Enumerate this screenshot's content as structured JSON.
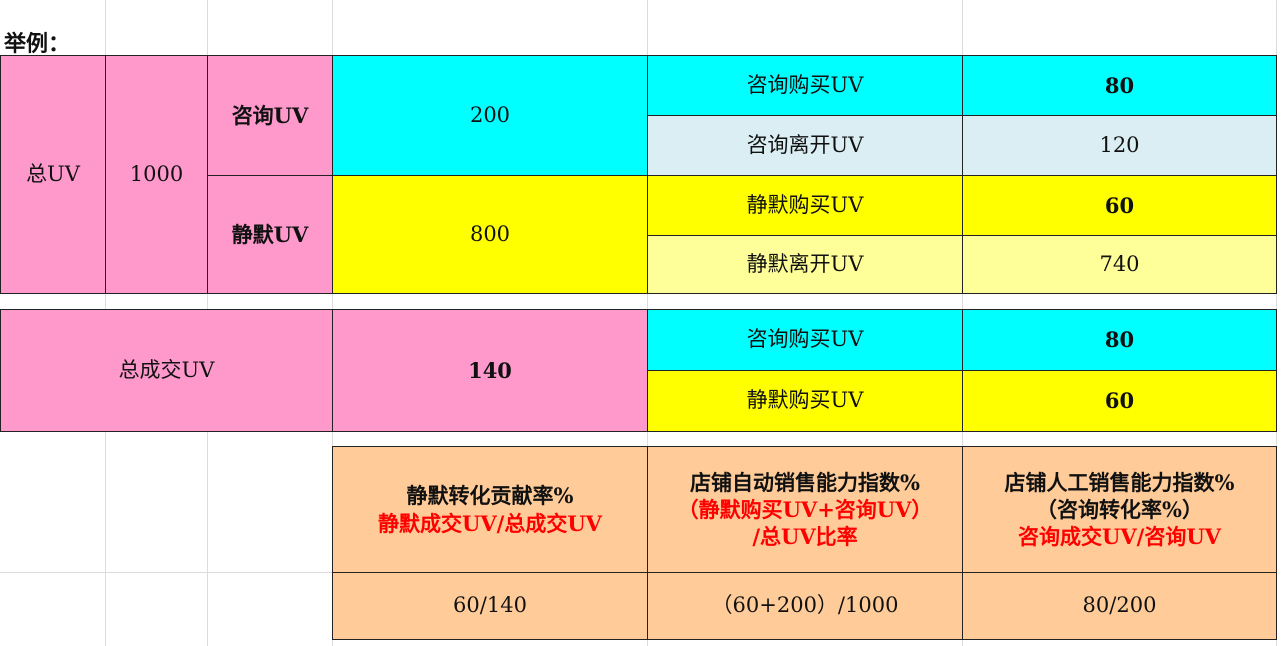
{
  "title": "举例：",
  "colors": {
    "pink": "#ff99cc",
    "cyan": "#00ffff",
    "light_blue": "#daeef3",
    "yellow": "#ffff00",
    "light_yellow": "#ffff99",
    "peach": "#ffcc99",
    "red": "#ff0000"
  },
  "uv_table": {
    "total_label": "总UV",
    "total_value": "1000",
    "consult_label": "咨询UV",
    "consult_value": "200",
    "silent_label": "静默UV",
    "silent_value": "800",
    "consult_buy_label": "咨询购买UV",
    "consult_buy_value": "80",
    "consult_leave_label": "咨询离开UV",
    "consult_leave_value": "120",
    "silent_buy_label": "静默购买UV",
    "silent_buy_value": "60",
    "silent_leave_label": "静默离开UV",
    "silent_leave_value": "740"
  },
  "deal_table": {
    "label": "总成交UV",
    "value": "140",
    "consult_buy_label": "咨询购买UV",
    "consult_buy_value": "80",
    "silent_buy_label": "静默购买UV",
    "silent_buy_value": "60"
  },
  "metrics": [
    {
      "title": "静默转化贡献率%",
      "formula_lines": [
        "静默成交UV/总成交UV"
      ],
      "example": "60/140"
    },
    {
      "title": "店铺自动销售能力指数%",
      "formula_lines": [
        "（静默购买UV+咨询UV）",
        "/总UV比率"
      ],
      "example": "（60+200）/1000"
    },
    {
      "title": "店铺人工销售能力指数%",
      "subtitle": "（咨询转化率%）",
      "formula_lines": [
        "咨询成交UV/咨询UV"
      ],
      "example": "80/200"
    }
  ]
}
